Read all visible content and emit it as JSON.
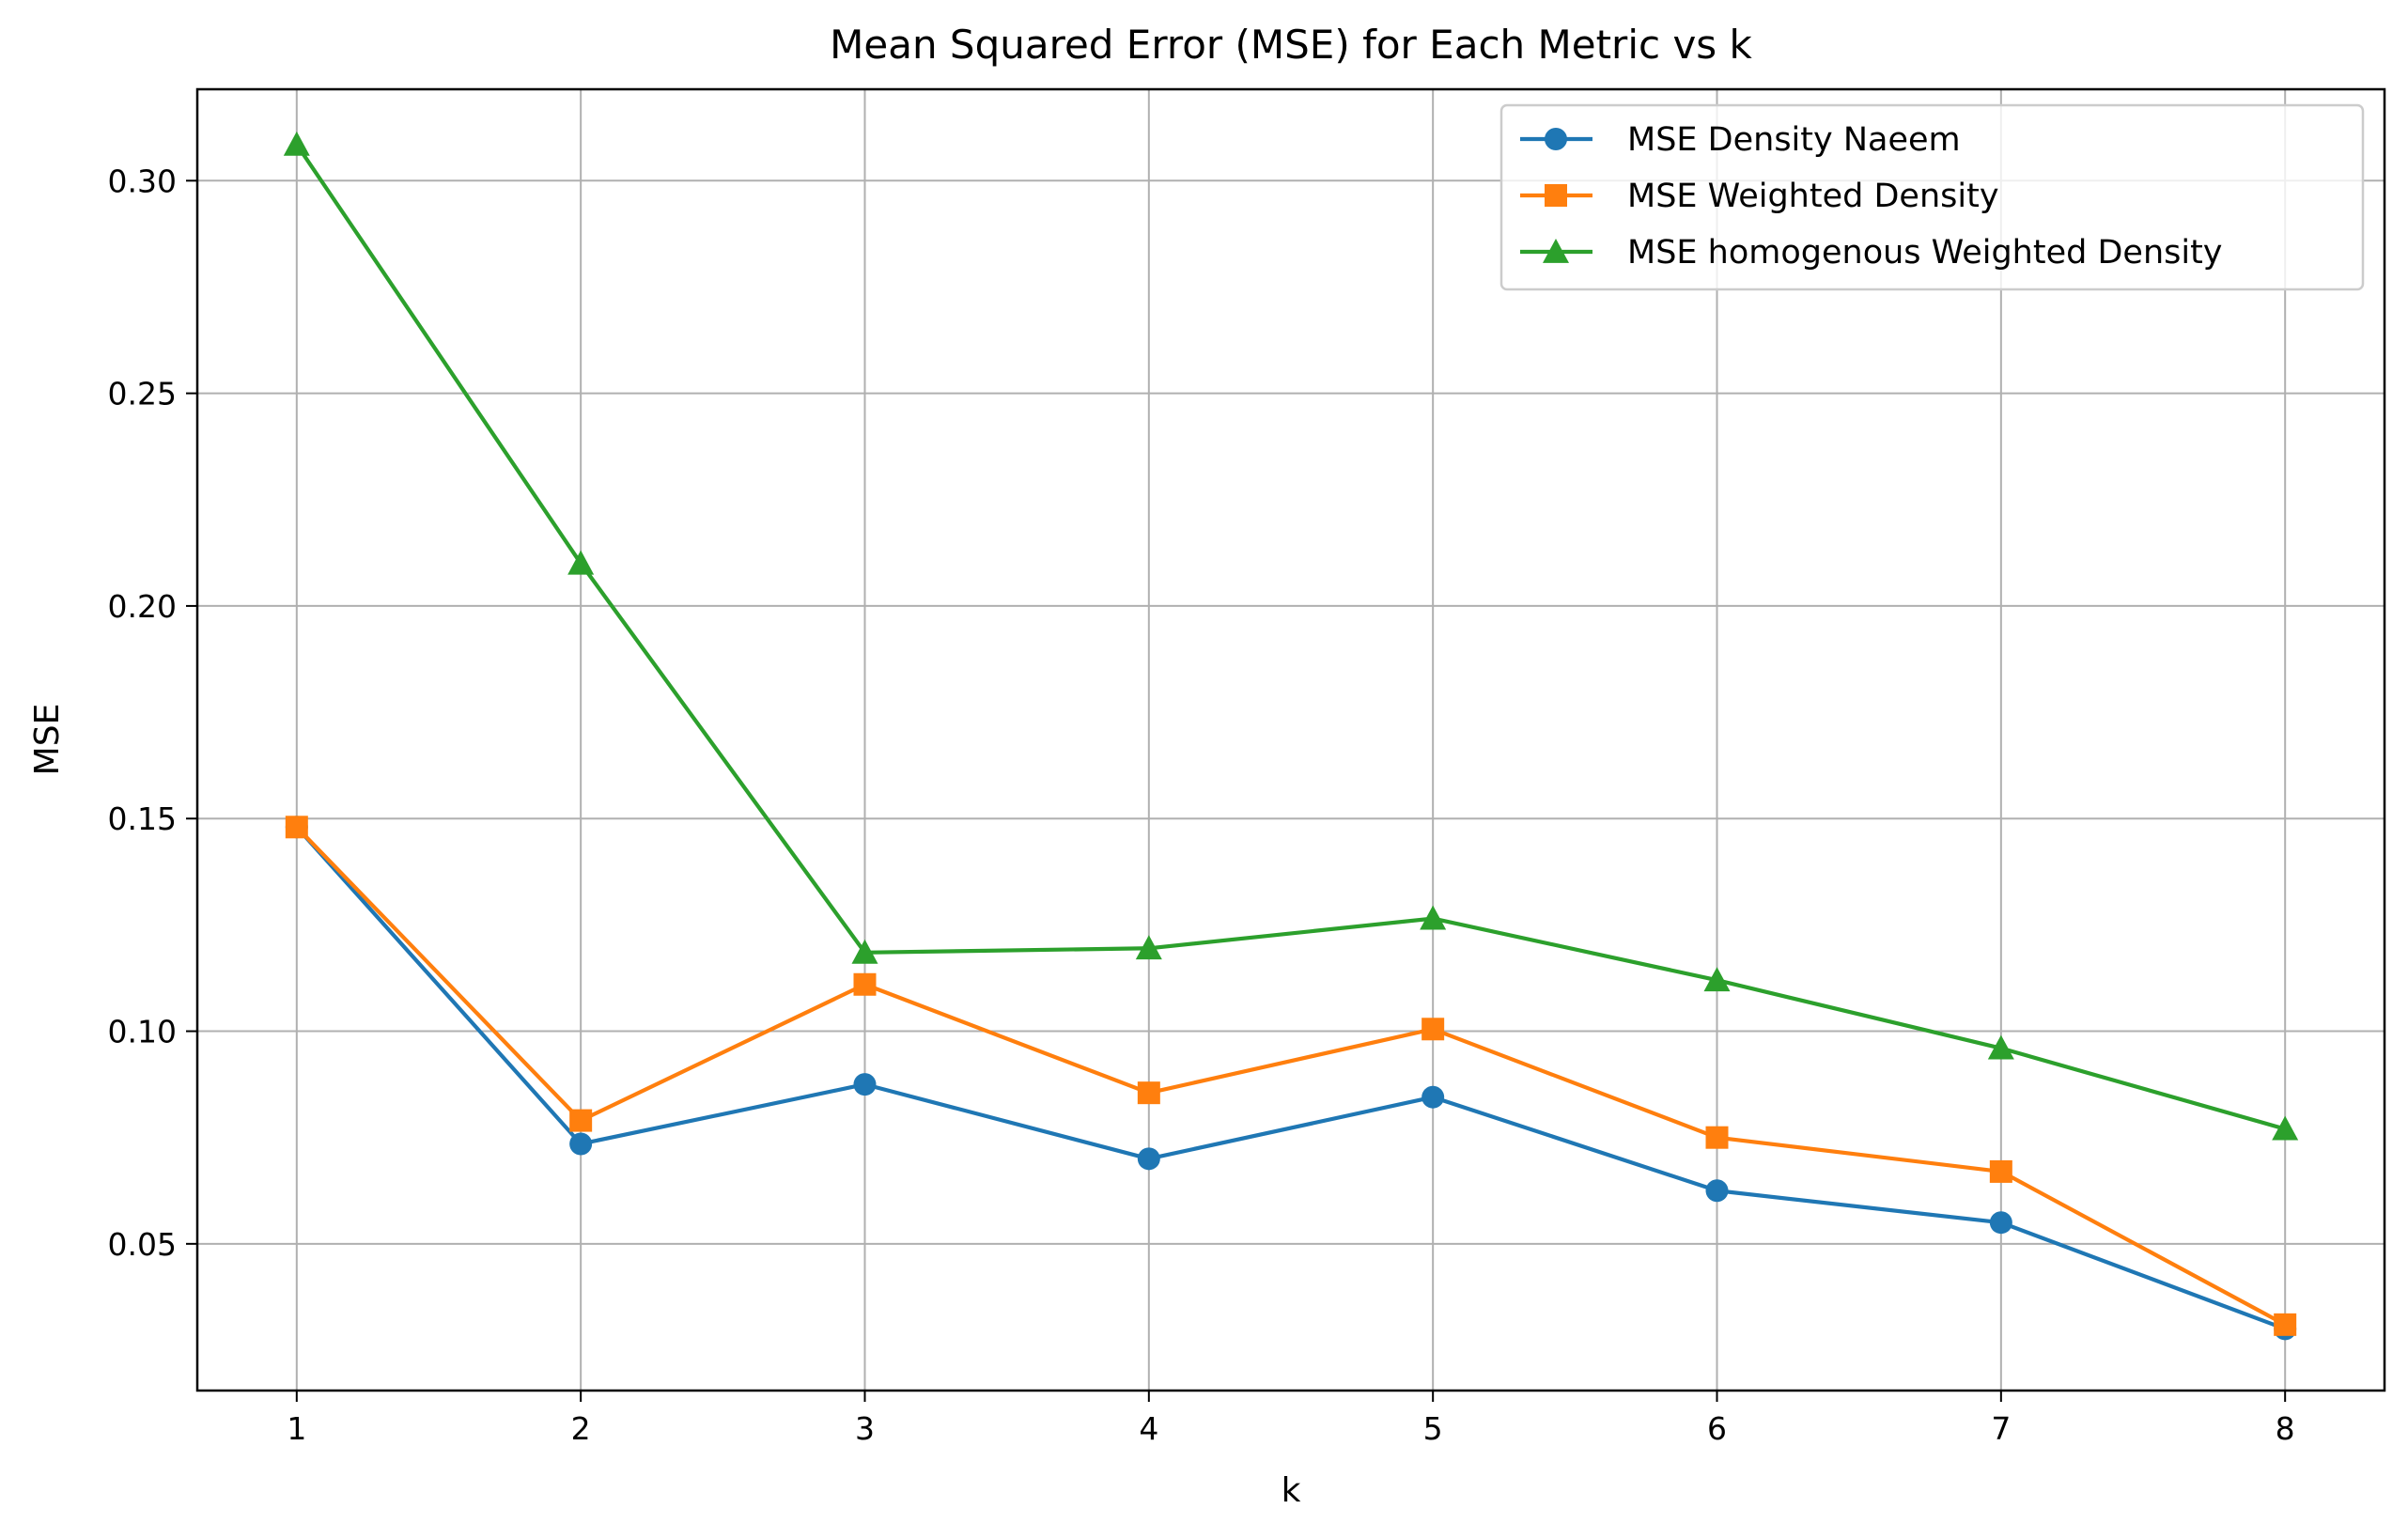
{
  "chart_data": {
    "type": "line",
    "title": "Mean Squared Error (MSE) for Each Metric vs k",
    "xlabel": "k",
    "ylabel": "MSE",
    "x": [
      1,
      2,
      3,
      4,
      5,
      6,
      7,
      8
    ],
    "xticks": [
      "1",
      "2",
      "3",
      "4",
      "5",
      "6",
      "7",
      "8"
    ],
    "xlim": [
      0.65,
      8.35
    ],
    "ylim": [
      0.0155,
      0.3215
    ],
    "yticks": [
      0.05,
      0.1,
      0.15,
      0.2,
      0.25,
      0.3
    ],
    "ytick_labels": [
      "0.05",
      "0.10",
      "0.15",
      "0.20",
      "0.25",
      "0.30"
    ],
    "grid": true,
    "legend_position": "top-right",
    "series": [
      {
        "name": "MSE Density Naeem",
        "color": "#1f77b4",
        "marker": "circle",
        "values": [
          0.148,
          0.0735,
          0.0875,
          0.07,
          0.0845,
          0.0625,
          0.055,
          0.03
        ]
      },
      {
        "name": "MSE Weighted Density",
        "color": "#ff7f0e",
        "marker": "square",
        "values": [
          0.148,
          0.079,
          0.111,
          0.0855,
          0.1005,
          0.075,
          0.067,
          0.031
        ]
      },
      {
        "name": "MSE homogenous Weighted Density",
        "color": "#2ca02c",
        "marker": "triangle",
        "values": [
          0.3085,
          0.21,
          0.1185,
          0.1195,
          0.1265,
          0.112,
          0.096,
          0.077
        ]
      }
    ]
  }
}
